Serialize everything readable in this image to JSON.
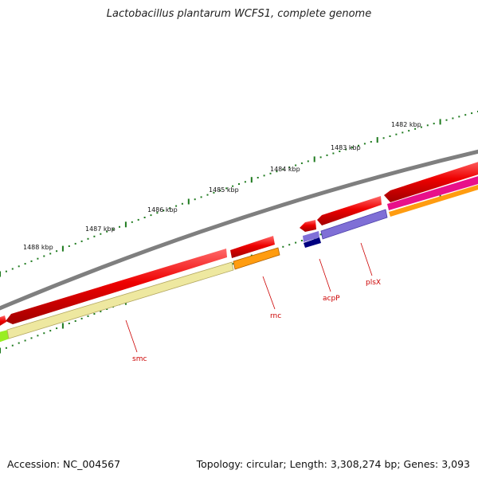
{
  "title": "Lactobacillus plantarum WCFS1, complete genome",
  "footer": {
    "accession": "Accession: NC_004567",
    "topology": "Topology: circular; Length: 3,308,274 bp; Genes: 3,093"
  },
  "ruler_labels": [
    "1482 kbp",
    "1483 kbp",
    "1484 kbp",
    "1485 kbp",
    "1486 kbp",
    "1487 kbp",
    "1488 kbp"
  ],
  "gene_labels": [
    "smc",
    "rnc",
    "acpP",
    "plsX"
  ],
  "colors": {
    "backbone": "#7f7f7f",
    "cds": "#ee0000",
    "tick_green": "#1e7a1e",
    "smc_band": "#eee8a0",
    "rnc_band": "#ff9c10",
    "acpP_band": "#000080",
    "plsX_band": "#7f6fd6",
    "magenta_band": "#e8108a",
    "lime_band": "#99ee22",
    "label_red": "#cc0000"
  }
}
